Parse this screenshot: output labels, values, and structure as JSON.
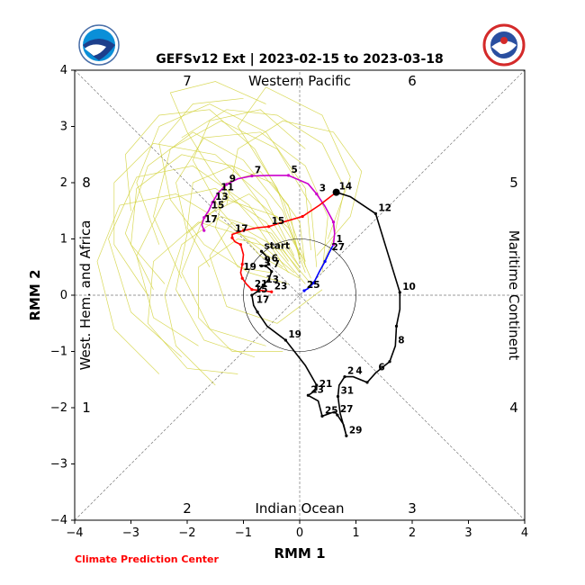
{
  "chart_data": {
    "type": "scatter",
    "title": "GEFSv12 Ext | 2023-02-15 to 2023-03-18",
    "xlabel": "RMM 1",
    "ylabel": "RMM 2",
    "xlim": [
      -4,
      4
    ],
    "ylim": [
      -4,
      4
    ],
    "xticks": [
      "−4",
      "−3",
      "−2",
      "−1",
      "0",
      "1",
      "2",
      "3",
      "4"
    ],
    "yticks": [
      "−4",
      "−3",
      "−2",
      "−1",
      "0",
      "1",
      "2",
      "3",
      "4"
    ],
    "grid": "diagonal dashed phase lines and zero axes",
    "regions": {
      "top": "Western Pacific",
      "bottom": "Indian Ocean",
      "left": "West. Hem. and Africa",
      "right": "Maritime Continent"
    },
    "phase_numbers": {
      "top_left": "7",
      "top_right": "6",
      "right_top": "5",
      "right_bottom": "4",
      "bottom_right": "3",
      "bottom_left": "2",
      "left_bottom": "1",
      "left_top": "8"
    },
    "credit": "Climate Prediction Center",
    "unit_circle_radius": 1,
    "series": [
      {
        "color": "#0000ff",
        "points": [
          [
            0.08,
            0.08
          ],
          [
            0.15,
            0.12
          ],
          [
            0.25,
            0.22
          ],
          [
            0.35,
            0.42
          ],
          [
            0.45,
            0.6
          ],
          [
            0.52,
            0.75
          ],
          [
            0.6,
            0.9
          ]
        ],
        "labels": [
          {
            "i": 0,
            "text": "25"
          },
          {
            "i": 5,
            "text": "27"
          }
        ]
      },
      {
        "color": "#cc00cc",
        "points": [
          [
            0.6,
            0.9
          ],
          [
            0.62,
            1.1
          ],
          [
            0.6,
            1.3
          ],
          [
            0.45,
            1.58
          ],
          [
            0.3,
            1.8
          ],
          [
            0.15,
            1.98
          ],
          [
            -0.2,
            2.13
          ],
          [
            -0.55,
            2.13
          ],
          [
            -0.85,
            2.12
          ],
          [
            -1.1,
            2.07
          ],
          [
            -1.3,
            1.97
          ],
          [
            -1.45,
            1.82
          ],
          [
            -1.55,
            1.65
          ],
          [
            -1.62,
            1.5
          ],
          [
            -1.7,
            1.38
          ],
          [
            -1.74,
            1.25
          ],
          [
            -1.7,
            1.15
          ]
        ],
        "labels": [
          {
            "i": 0,
            "text": "1"
          },
          {
            "i": 4,
            "text": "3"
          },
          {
            "i": 6,
            "text": "5"
          },
          {
            "i": 8,
            "text": "7"
          },
          {
            "i": 10,
            "text": "9"
          },
          {
            "i": 11,
            "text": "11"
          },
          {
            "i": 12,
            "text": "13"
          },
          {
            "i": 13,
            "text": "15"
          },
          {
            "i": 15,
            "text": "17"
          }
        ]
      },
      {
        "color": "#ff0000",
        "points": [
          [
            0.65,
            1.83
          ],
          [
            0.35,
            1.6
          ],
          [
            0.05,
            1.4
          ],
          [
            -0.3,
            1.3
          ],
          [
            -0.55,
            1.22
          ],
          [
            -0.75,
            1.2
          ],
          [
            -1.0,
            1.15
          ],
          [
            -1.2,
            1.08
          ],
          [
            -1.2,
            1.02
          ],
          [
            -1.15,
            0.95
          ],
          [
            -1.05,
            0.9
          ],
          [
            -1.0,
            0.72
          ],
          [
            -1.02,
            0.55
          ],
          [
            -1.05,
            0.4
          ],
          [
            -1.02,
            0.3
          ],
          [
            -0.95,
            0.2
          ],
          [
            -0.85,
            0.1
          ],
          [
            -0.65,
            0.08
          ],
          [
            -0.5,
            0.06
          ]
        ],
        "labels": [
          {
            "i": 4,
            "text": "15"
          },
          {
            "i": 7,
            "text": "17"
          },
          {
            "i": 13,
            "text": "19"
          },
          {
            "i": 16,
            "text": "21"
          },
          {
            "i": 18,
            "text": "23"
          }
        ]
      },
      {
        "color": "#000000",
        "points": [
          [
            -0.68,
            0.78
          ],
          [
            -0.6,
            0.7
          ],
          [
            -0.55,
            0.55
          ],
          [
            -0.62,
            0.52
          ],
          [
            -0.68,
            0.52
          ],
          [
            -0.72,
            0.53
          ],
          [
            -0.6,
            0.52
          ],
          [
            -0.52,
            0.45
          ],
          [
            -0.5,
            0.42
          ],
          [
            -0.55,
            0.28
          ],
          [
            -0.65,
            0.18
          ],
          [
            -0.73,
            0.08
          ],
          [
            -0.85,
            0.0
          ],
          [
            -0.82,
            -0.18
          ],
          [
            -0.75,
            -0.3
          ],
          [
            -0.58,
            -0.55
          ],
          [
            -0.25,
            -0.8
          ],
          [
            0.1,
            -1.25
          ],
          [
            0.3,
            -1.6
          ],
          [
            0.3,
            -1.68
          ],
          [
            0.15,
            -1.78
          ],
          [
            0.33,
            -1.88
          ],
          [
            0.4,
            -2.15
          ],
          [
            0.62,
            -2.07
          ],
          [
            0.67,
            -2.13
          ],
          [
            0.78,
            -2.3
          ],
          [
            0.83,
            -2.5
          ],
          [
            0.72,
            -2.1
          ],
          [
            0.68,
            -1.8
          ],
          [
            0.7,
            -1.6
          ],
          [
            0.8,
            -1.45
          ],
          [
            0.95,
            -1.45
          ],
          [
            1.2,
            -1.55
          ],
          [
            1.35,
            -1.38
          ],
          [
            1.6,
            -1.18
          ],
          [
            1.7,
            -0.9
          ],
          [
            1.72,
            -0.55
          ],
          [
            1.78,
            -0.25
          ],
          [
            1.78,
            0.05
          ],
          [
            1.58,
            0.7
          ],
          [
            1.35,
            1.45
          ],
          [
            0.9,
            1.75
          ],
          [
            0.65,
            1.83
          ]
        ],
        "labels": [
          {
            "i": 0,
            "text": "start"
          },
          {
            "i": 2,
            "text": "6"
          },
          {
            "i": 4,
            "text": "9"
          },
          {
            "i": 7,
            "text": "7"
          },
          {
            "i": 10,
            "text": "13"
          },
          {
            "i": 12,
            "text": "15"
          },
          {
            "i": 13,
            "text": "17"
          },
          {
            "i": 16,
            "text": "19"
          },
          {
            "i": 19,
            "text": "21"
          },
          {
            "i": 20,
            "text": "23"
          },
          {
            "i": 22,
            "text": "25"
          },
          {
            "i": 24,
            "text": "27"
          },
          {
            "i": 26,
            "text": "29"
          },
          {
            "i": 28,
            "text": "31"
          },
          {
            "i": 30,
            "text": "2"
          },
          {
            "i": 31,
            "text": "4"
          },
          {
            "i": 33,
            "text": "6"
          },
          {
            "i": 35,
            "text": "8"
          },
          {
            "i": 38,
            "text": "10"
          },
          {
            "i": 40,
            "text": "12"
          },
          {
            "i": 42,
            "text": "14"
          }
        ]
      }
    ],
    "ensemble": {
      "color": "#d2d23c",
      "members": [
        [
          [
            0.0,
            0.5
          ],
          [
            -0.6,
            1.3
          ],
          [
            -1.5,
            1.9
          ],
          [
            -2.4,
            1.7
          ],
          [
            -2.9,
            0.7
          ],
          [
            -2.6,
            -0.4
          ],
          [
            -1.8,
            -0.9
          ]
        ],
        [
          [
            0.1,
            0.4
          ],
          [
            -0.3,
            1.5
          ],
          [
            -1.0,
            2.4
          ],
          [
            -1.9,
            2.9
          ],
          [
            -2.7,
            2.3
          ],
          [
            -3.1,
            1.1
          ],
          [
            -2.6,
            0.1
          ]
        ],
        [
          [
            0.2,
            0.3
          ],
          [
            -0.2,
            1.2
          ],
          [
            -0.9,
            1.8
          ],
          [
            -1.7,
            1.4
          ],
          [
            -2.1,
            0.4
          ],
          [
            -1.6,
            -0.6
          ],
          [
            -0.6,
            -0.9
          ]
        ],
        [
          [
            -0.2,
            0.6
          ],
          [
            -0.9,
            1.6
          ],
          [
            -1.9,
            2.3
          ],
          [
            -2.9,
            2.1
          ],
          [
            -3.4,
            1.0
          ],
          [
            -3.0,
            -0.3
          ],
          [
            -2.1,
            -1.1
          ]
        ],
        [
          [
            0.0,
            0.7
          ],
          [
            -0.4,
            1.9
          ],
          [
            -1.1,
            3.0
          ],
          [
            -0.6,
            3.7
          ],
          [
            0.4,
            3.2
          ],
          [
            0.9,
            2.1
          ],
          [
            0.5,
            1.0
          ]
        ],
        [
          [
            0.3,
            0.5
          ],
          [
            0.2,
            1.6
          ],
          [
            -0.4,
            2.6
          ],
          [
            -1.4,
            3.1
          ],
          [
            -2.3,
            2.6
          ],
          [
            -2.6,
            1.4
          ],
          [
            -2.1,
            0.3
          ]
        ],
        [
          [
            -0.1,
            0.4
          ],
          [
            -0.8,
            1.0
          ],
          [
            -1.8,
            1.3
          ],
          [
            -2.6,
            0.6
          ],
          [
            -2.7,
            -0.5
          ],
          [
            -2.0,
            -1.3
          ],
          [
            -1.1,
            -1.4
          ]
        ],
        [
          [
            0.1,
            0.6
          ],
          [
            -0.4,
            1.4
          ],
          [
            -1.3,
            1.7
          ],
          [
            -2.0,
            1.1
          ],
          [
            -2.2,
            0.1
          ],
          [
            -1.7,
            -0.8
          ],
          [
            -0.8,
            -1.1
          ]
        ],
        [
          [
            -0.3,
            0.5
          ],
          [
            -1.2,
            1.2
          ],
          [
            -2.2,
            1.8
          ],
          [
            -3.2,
            1.6
          ],
          [
            -3.6,
            0.6
          ],
          [
            -3.3,
            -0.6
          ],
          [
            -2.5,
            -1.4
          ]
        ],
        [
          [
            0.2,
            0.8
          ],
          [
            0.1,
            1.9
          ],
          [
            -0.6,
            2.9
          ],
          [
            -1.6,
            3.4
          ],
          [
            -2.5,
            3.0
          ],
          [
            -2.9,
            2.0
          ],
          [
            -2.5,
            0.9
          ]
        ],
        [
          [
            0.0,
            0.3
          ],
          [
            -0.7,
            0.7
          ],
          [
            -1.4,
            1.5
          ],
          [
            -1.9,
            2.4
          ],
          [
            -1.6,
            3.1
          ],
          [
            -0.7,
            3.3
          ],
          [
            0.1,
            2.6
          ]
        ],
        [
          [
            0.4,
            0.4
          ],
          [
            0.5,
            1.4
          ],
          [
            0.1,
            2.3
          ],
          [
            -0.7,
            2.9
          ],
          [
            -1.7,
            2.8
          ],
          [
            -2.2,
            2.0
          ],
          [
            -2.0,
            1.1
          ]
        ],
        [
          [
            -0.2,
            0.2
          ],
          [
            -0.9,
            0.4
          ],
          [
            -1.7,
            0.9
          ],
          [
            -2.3,
            1.7
          ],
          [
            -2.5,
            2.7
          ],
          [
            -1.9,
            3.4
          ],
          [
            -1.0,
            3.5
          ]
        ],
        [
          [
            0.1,
            0.2
          ],
          [
            -0.5,
            0.9
          ],
          [
            -1.2,
            1.3
          ],
          [
            -1.6,
            0.7
          ],
          [
            -1.3,
            -0.2
          ],
          [
            -0.4,
            -0.5
          ],
          [
            0.4,
            0.1
          ]
        ],
        [
          [
            0.0,
            0.6
          ],
          [
            -0.2,
            1.6
          ],
          [
            -0.7,
            2.2
          ],
          [
            -1.3,
            2.0
          ],
          [
            -1.5,
            1.2
          ],
          [
            -1.1,
            0.5
          ],
          [
            -0.5,
            0.4
          ]
        ],
        [
          [
            0.3,
            0.7
          ],
          [
            0.9,
            1.4
          ],
          [
            1.1,
            2.2
          ],
          [
            0.6,
            2.9
          ],
          [
            -0.3,
            3.1
          ],
          [
            -1.1,
            2.6
          ],
          [
            -1.3,
            1.6
          ]
        ],
        [
          [
            -0.1,
            0.7
          ],
          [
            -0.6,
            1.7
          ],
          [
            -1.5,
            2.5
          ],
          [
            -2.6,
            2.7
          ],
          [
            -3.3,
            2.0
          ],
          [
            -3.3,
            0.9
          ],
          [
            -2.7,
            0.0
          ]
        ],
        [
          [
            0.2,
            0.2
          ],
          [
            -0.3,
            0.8
          ],
          [
            -1.1,
            1.0
          ],
          [
            -1.8,
            0.5
          ],
          [
            -1.8,
            -0.4
          ],
          [
            -1.2,
            -1.0
          ],
          [
            -0.3,
            -1.0
          ]
        ],
        [
          [
            0.0,
            0.4
          ],
          [
            -0.5,
            1.1
          ],
          [
            -1.4,
            1.4
          ],
          [
            -2.1,
            0.9
          ],
          [
            -2.4,
            0.0
          ],
          [
            -2.2,
            -0.9
          ],
          [
            -1.5,
            -1.6
          ]
        ],
        [
          [
            0.1,
            0.5
          ],
          [
            0.0,
            1.3
          ],
          [
            -0.5,
            2.0
          ],
          [
            -1.2,
            2.3
          ],
          [
            -1.9,
            2.0
          ],
          [
            -2.0,
            1.2
          ],
          [
            -1.6,
            0.5
          ]
        ],
        [
          [
            -0.2,
            0.4
          ],
          [
            -0.8,
            1.3
          ],
          [
            -1.5,
            2.1
          ],
          [
            -2.0,
            2.9
          ],
          [
            -2.3,
            3.6
          ],
          [
            -1.5,
            3.8
          ],
          [
            -0.6,
            3.4
          ]
        ],
        [
          [
            0.3,
            0.3
          ],
          [
            0.6,
            1.0
          ],
          [
            0.8,
            1.9
          ],
          [
            0.4,
            2.7
          ],
          [
            -0.4,
            3.2
          ],
          [
            -1.3,
            3.3
          ],
          [
            -2.1,
            2.8
          ]
        ],
        [
          [
            0.0,
            0.5
          ],
          [
            -0.6,
            1.5
          ],
          [
            -1.2,
            2.3
          ],
          [
            -2.1,
            2.5
          ],
          [
            -2.9,
            1.9
          ],
          [
            -3.0,
            0.9
          ],
          [
            -2.4,
            0.2
          ]
        ],
        [
          [
            0.1,
            0.6
          ],
          [
            -0.3,
            1.7
          ],
          [
            -0.8,
            2.6
          ],
          [
            -1.6,
            3.3
          ],
          [
            -2.5,
            3.2
          ],
          [
            -3.1,
            2.5
          ],
          [
            -3.0,
            1.5
          ]
        ]
      ]
    }
  }
}
